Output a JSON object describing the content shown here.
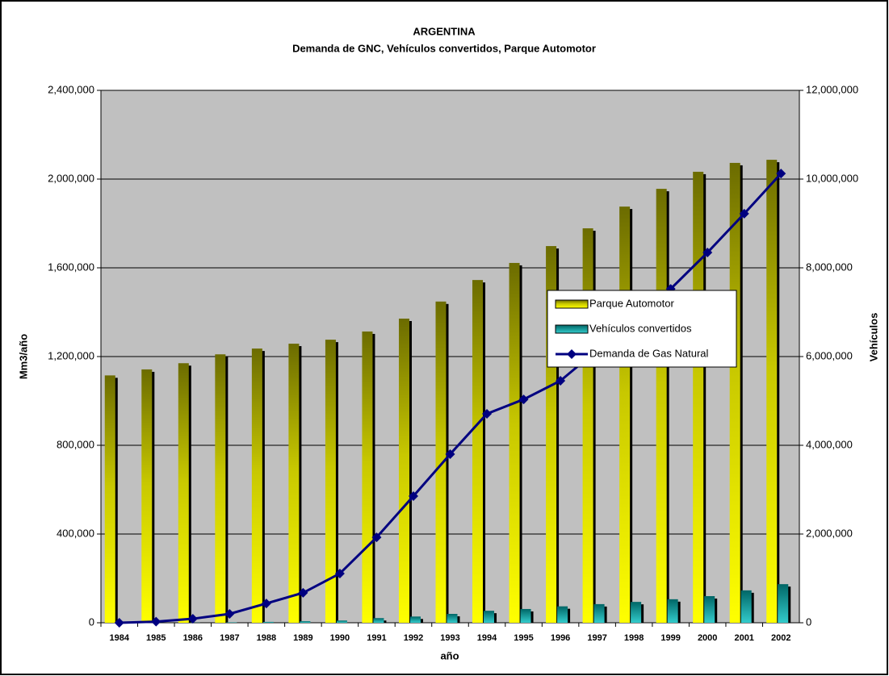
{
  "chart_data": {
    "type": "bar",
    "title": "ARGENTINA",
    "subtitle": "Demanda de GNC, Vehículos convertidos, Parque Automotor",
    "x_label": "año",
    "y_label": "Mm3/año",
    "y2_label": "Vehículos",
    "categories": [
      "1984",
      "1985",
      "1986",
      "1987",
      "1988",
      "1989",
      "1990",
      "1991",
      "1992",
      "1993",
      "1994",
      "1995",
      "1996",
      "1997",
      "1998",
      "1999",
      "2000",
      "2001",
      "2002"
    ],
    "series": [
      {
        "name": "Parque Automotor",
        "type": "bar",
        "axis": "y2",
        "color": "#ffff00",
        "values": [
          5575000,
          5710000,
          5850000,
          6050000,
          6180000,
          6290000,
          6380000,
          6565000,
          6855000,
          7240000,
          7725000,
          8110000,
          8490000,
          8890000,
          9380000,
          9780000,
          10165000,
          10365000,
          10435000
        ]
      },
      {
        "name": "Vehículos convertidos",
        "type": "bar",
        "axis": "y2",
        "color": "#33cccc",
        "values": [
          0,
          2000,
          5000,
          10000,
          20000,
          35000,
          50000,
          105000,
          140000,
          200000,
          270000,
          310000,
          370000,
          420000,
          470000,
          530000,
          600000,
          730000,
          870000
        ]
      },
      {
        "name": "Demanda de Gas Natural",
        "type": "line",
        "axis": "y",
        "color": "#000080",
        "values": [
          0,
          5000,
          18000,
          40000,
          87000,
          135000,
          222000,
          385000,
          571000,
          760000,
          942000,
          1007000,
          1091000,
          1229000,
          1367000,
          1505000,
          1669000,
          1844000,
          2025000
        ]
      }
    ],
    "ylim": [
      0,
      2400000
    ],
    "yticks": [
      0,
      {
        "value": 400000,
        "label": "400,000"
      },
      {
        "value": 800000,
        "label": "800,000"
      },
      {
        "value": 1200000,
        "label": "1,200,000"
      },
      {
        "value": 1600000,
        "label": "1,600,000"
      },
      {
        "value": 2000000,
        "label": "2,000,000"
      },
      {
        "value": 2400000,
        "label": "2,400,000"
      }
    ],
    "y2lim": [
      0,
      12000000
    ],
    "y2ticks": [
      0,
      {
        "value": 2000000,
        "label": "2,000,000"
      },
      {
        "value": 4000000,
        "label": "4,000,000"
      },
      {
        "value": 6000000,
        "label": "6,000,000"
      },
      {
        "value": 8000000,
        "label": "8,000,000"
      },
      {
        "value": 10000000,
        "label": "10,000,000"
      },
      {
        "value": 12000000,
        "label": "12,000,000"
      }
    ],
    "grid": true,
    "legend": "right"
  }
}
